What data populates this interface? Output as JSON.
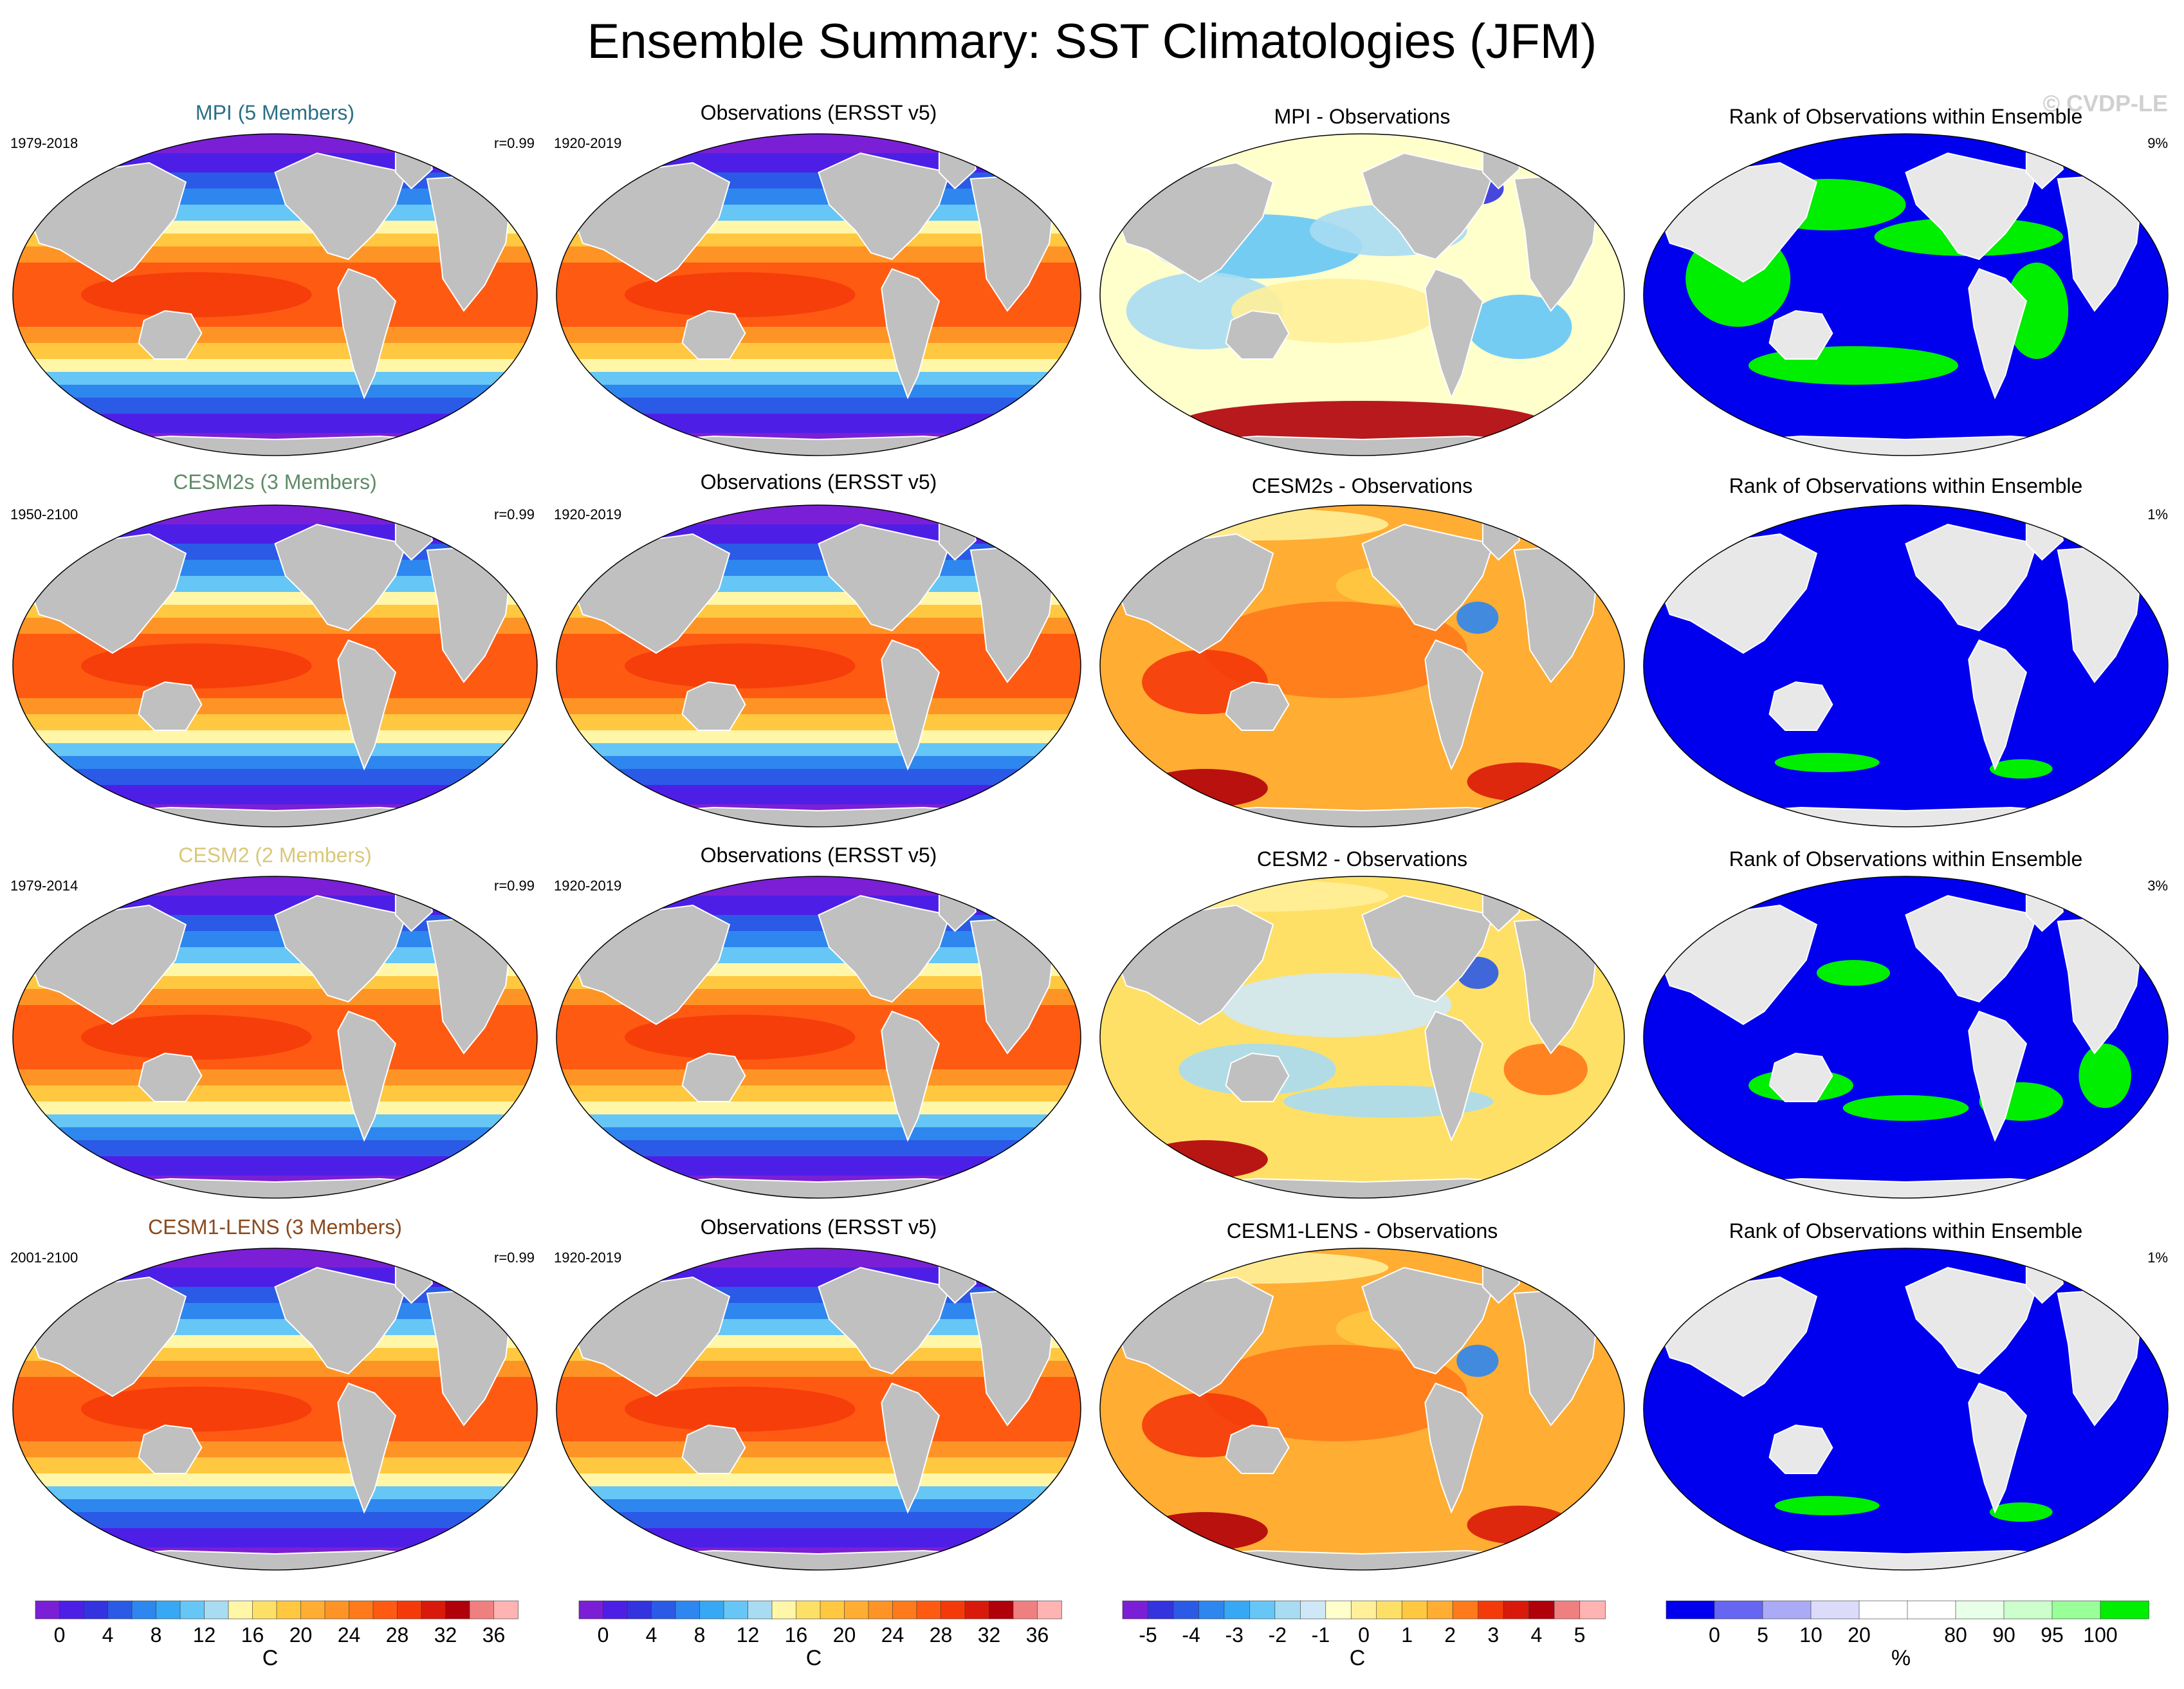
{
  "title": "Ensemble Summary: SST Climatologies (JFM)",
  "copyright": "© CVDP-LE",
  "colors": {
    "land": "#c0c0c0",
    "rank_land": "#e8e8e8",
    "rank_blue": "#0000ee",
    "rank_green": "#00ee00"
  },
  "chart_data": {
    "type": "map-panels",
    "rows": [
      {
        "model_label": "MPI (5 Members)",
        "model_color": "#2a6f86",
        "model_years": "1979-2018",
        "pattern_corr": "r=0.99",
        "obs_label": "Observations (ERSST v5)",
        "obs_years": "1920-2019",
        "diff_label": "MPI - Observations",
        "rank_label": "Rank of Observations within Ensemble",
        "rank_pct": "9%",
        "diff_bias": "mixed",
        "rank_green": "many"
      },
      {
        "model_label": "CESM2s (3 Members)",
        "model_color": "#5f8c67",
        "model_years": "1950-2100",
        "pattern_corr": "r=0.99",
        "obs_label": "Observations (ERSST v5)",
        "obs_years": "1920-2019",
        "diff_label": "CESM2s - Observations",
        "rank_label": "Rank of Observations within Ensemble",
        "rank_pct": "1%",
        "diff_bias": "warm",
        "rank_green": "few"
      },
      {
        "model_label": "CESM2 (2 Members)",
        "model_color": "#d9c87a",
        "model_years": "1979-2014",
        "pattern_corr": "r=0.99",
        "obs_label": "Observations (ERSST v5)",
        "obs_years": "1920-2019",
        "diff_label": "CESM2 - Observations",
        "rank_label": "Rank of Observations within Ensemble",
        "rank_pct": "3%",
        "diff_bias": "mild",
        "rank_green": "some"
      },
      {
        "model_label": "CESM1-LENS (3 Members)",
        "model_color": "#8a4a1e",
        "model_years": "2001-2100",
        "pattern_corr": "r=0.99",
        "obs_label": "Observations (ERSST v5)",
        "obs_years": "1920-2019",
        "diff_label": "CESM1-LENS - Observations",
        "rank_label": "Rank of Observations within Ensemble",
        "rank_pct": "1%",
        "diff_bias": "warm",
        "rank_green": "few"
      }
    ],
    "colorbars": [
      {
        "name": "sst",
        "colors": [
          "#7a1fd6",
          "#4d1fe6",
          "#3333e0",
          "#2b5ae6",
          "#2e86ef",
          "#37a8f4",
          "#66c6f6",
          "#a8dcf3",
          "#fff6a8",
          "#ffe066",
          "#ffc840",
          "#ffad33",
          "#ff9426",
          "#ff7a1a",
          "#ff5a12",
          "#f53a0a",
          "#d91a0a",
          "#b0000a",
          "#f08080",
          "#ffb3b3"
        ],
        "tick_labels": [
          "0",
          "4",
          "8",
          "12",
          "16",
          "20",
          "24",
          "28",
          "32",
          "36"
        ],
        "unit": "C"
      },
      {
        "name": "sst_obs",
        "colors": [
          "#7a1fd6",
          "#4d1fe6",
          "#3333e0",
          "#2b5ae6",
          "#2e86ef",
          "#37a8f4",
          "#66c6f6",
          "#a8dcf3",
          "#fff6a8",
          "#ffe066",
          "#ffc840",
          "#ffad33",
          "#ff9426",
          "#ff7a1a",
          "#ff5a12",
          "#f53a0a",
          "#d91a0a",
          "#b0000a",
          "#f08080",
          "#ffb3b3"
        ],
        "tick_labels": [
          "0",
          "4",
          "8",
          "12",
          "16",
          "20",
          "24",
          "28",
          "32",
          "36"
        ],
        "unit": "C"
      },
      {
        "name": "diff",
        "colors": [
          "#7a1fd6",
          "#3333e0",
          "#2b5ae6",
          "#2e86ef",
          "#37a8f4",
          "#66c6f6",
          "#a8dcf3",
          "#cfe8f7",
          "#ffffcc",
          "#fff099",
          "#ffe066",
          "#ffc840",
          "#ffad33",
          "#ff7a1a",
          "#f53a0a",
          "#d91a0a",
          "#b0000a",
          "#f08080",
          "#ffb3b3"
        ],
        "tick_labels": [
          "-5",
          "-4",
          "-3",
          "-2",
          "-1",
          "0",
          "1",
          "2",
          "3",
          "4",
          "5"
        ],
        "unit": "C"
      },
      {
        "name": "rank",
        "colors": [
          "#0000ee",
          "#6666f2",
          "#aaaaf6",
          "#dcdcfa",
          "#ffffff",
          "#ffffff",
          "#e8ffe8",
          "#ccffcc",
          "#99ff99",
          "#00ee00"
        ],
        "tick_labels": [
          "0",
          "5",
          "10",
          "20",
          "80",
          "90",
          "95",
          "100"
        ],
        "unit": "%"
      }
    ]
  }
}
